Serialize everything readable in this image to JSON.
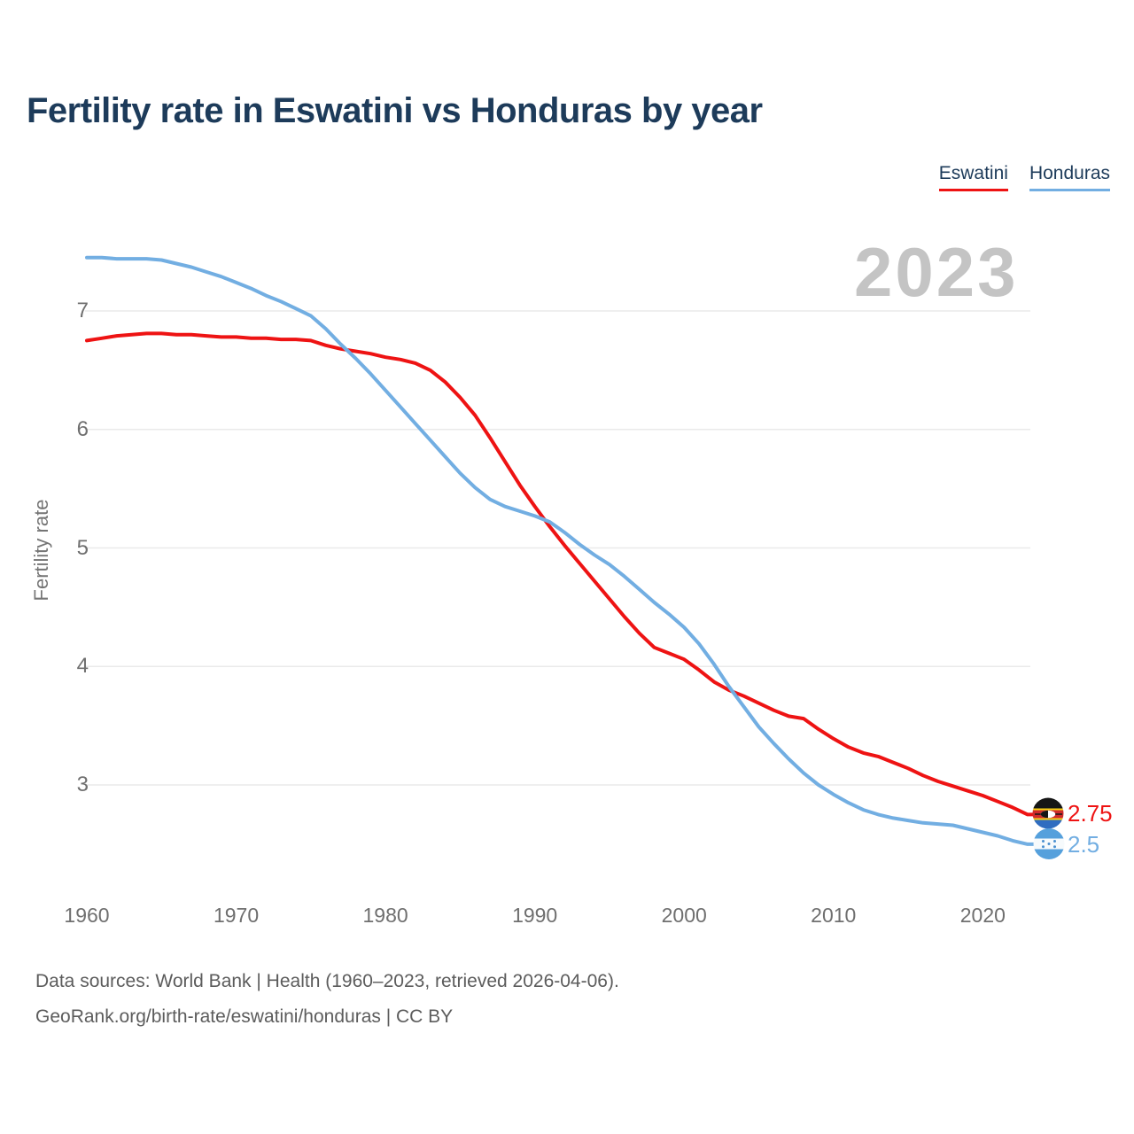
{
  "header": {
    "title": "Fertility rate in Eswatini vs Honduras by year"
  },
  "legend": [
    {
      "label": "Eswatini",
      "color": "#ee1313"
    },
    {
      "label": "Honduras",
      "color": "#72aee2"
    }
  ],
  "chart": {
    "watermark": "2023",
    "y_axis_title": "Fertility rate"
  },
  "chart_data": {
    "type": "line",
    "title": "Fertility rate in Eswatini vs Honduras by year",
    "xlabel": "",
    "ylabel": "Fertility rate",
    "x_start": 1960,
    "x_end": 2023,
    "x_ticks": [
      1960,
      1970,
      1980,
      1990,
      2000,
      2010,
      2020
    ],
    "y_ticks": [
      7,
      6,
      5,
      4,
      3
    ],
    "ylim": [
      2.3,
      7.6
    ],
    "grid": "horizontal",
    "legend_position": "top-right",
    "watermark": "2023",
    "series": [
      {
        "name": "Eswatini",
        "color": "#ee1313",
        "end_label": "2.75",
        "end_value": 2.75,
        "values": [
          6.75,
          6.77,
          6.79,
          6.8,
          6.81,
          6.81,
          6.8,
          6.8,
          6.79,
          6.78,
          6.78,
          6.77,
          6.77,
          6.76,
          6.76,
          6.75,
          6.71,
          6.68,
          6.66,
          6.64,
          6.61,
          6.59,
          6.56,
          6.5,
          6.4,
          6.27,
          6.12,
          5.93,
          5.73,
          5.53,
          5.35,
          5.18,
          5.02,
          4.87,
          4.72,
          4.57,
          4.42,
          4.28,
          4.16,
          4.11,
          4.06,
          3.97,
          3.87,
          3.8,
          3.75,
          3.69,
          3.63,
          3.58,
          3.56,
          3.47,
          3.39,
          3.32,
          3.27,
          3.24,
          3.19,
          3.14,
          3.08,
          3.03,
          2.99,
          2.95,
          2.91,
          2.86,
          2.81,
          2.75
        ]
      },
      {
        "name": "Honduras",
        "color": "#72aee2",
        "end_label": "2.5",
        "end_value": 2.5,
        "values": [
          7.45,
          7.45,
          7.44,
          7.44,
          7.44,
          7.43,
          7.4,
          7.37,
          7.33,
          7.29,
          7.24,
          7.19,
          7.13,
          7.08,
          7.02,
          6.96,
          6.85,
          6.72,
          6.6,
          6.47,
          6.33,
          6.19,
          6.05,
          5.91,
          5.77,
          5.63,
          5.51,
          5.41,
          5.35,
          5.31,
          5.27,
          5.22,
          5.13,
          5.03,
          4.94,
          4.86,
          4.76,
          4.65,
          4.54,
          4.44,
          4.33,
          4.19,
          4.02,
          3.83,
          3.66,
          3.49,
          3.35,
          3.22,
          3.1,
          3.0,
          2.92,
          2.85,
          2.79,
          2.75,
          2.72,
          2.7,
          2.68,
          2.67,
          2.66,
          2.63,
          2.6,
          2.57,
          2.53,
          2.5
        ]
      }
    ]
  },
  "footer": {
    "line1": "Data sources: World Bank | Health (1960–2023, retrieved 2026-04-06).",
    "line2": "GeoRank.org/birth-rate/eswatini/honduras | CC BY"
  }
}
